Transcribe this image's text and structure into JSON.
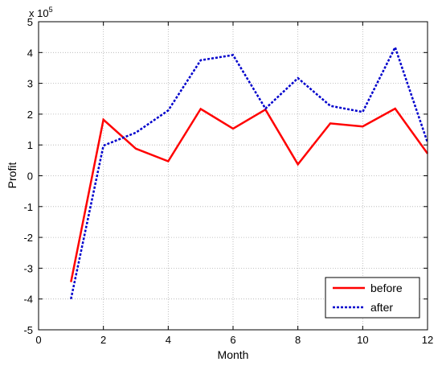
{
  "chart_data": {
    "type": "line",
    "title": "",
    "xlabel": "Month",
    "ylabel": "Profit",
    "exponent_label": {
      "base": "x 10",
      "power": "5"
    },
    "xlim": [
      0,
      12
    ],
    "ylim": [
      -5,
      5
    ],
    "y_scale_factor": 100000,
    "xticks": [
      "0",
      "2",
      "4",
      "6",
      "8",
      "10",
      "12"
    ],
    "yticks": [
      "-5",
      "-4",
      "-3",
      "-2",
      "-1",
      "0",
      "1",
      "2",
      "3",
      "4",
      "5"
    ],
    "grid": true,
    "legend_position": "bottom-right",
    "x": [
      1,
      2,
      3,
      4,
      5,
      6,
      7,
      8,
      9,
      10,
      11,
      12
    ],
    "series": [
      {
        "name": "before",
        "color": "#ff0000",
        "style": "solid",
        "values": [
          -3.45,
          1.82,
          0.88,
          0.47,
          2.17,
          1.53,
          2.15,
          0.37,
          1.7,
          1.6,
          2.18,
          0.72
        ]
      },
      {
        "name": "after",
        "color": "#0000cc",
        "style": "dotted",
        "values": [
          -4.0,
          0.98,
          1.4,
          2.12,
          3.75,
          3.92,
          2.18,
          3.17,
          2.27,
          2.07,
          4.17,
          1.08
        ]
      }
    ]
  }
}
